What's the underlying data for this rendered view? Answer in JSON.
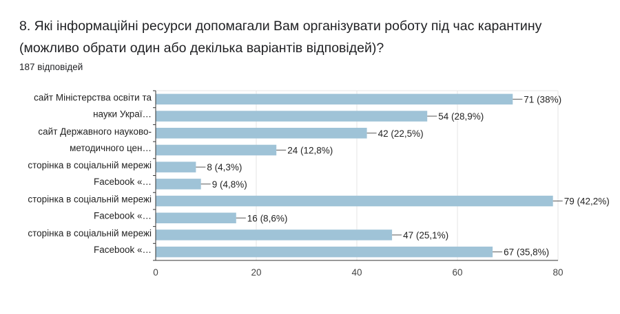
{
  "header": {
    "title": "8. Які інформаційні ресурси допомагали Вам організувати роботу під час карантину (можливо обрати один або декілька варіантів відповідей)?",
    "responses": "187 відповідей"
  },
  "chart_data": {
    "type": "bar",
    "orientation": "horizontal",
    "category_labels": [
      [
        "сайт Міністерства освіти та",
        "науки Украї…"
      ],
      [
        "сайт Державного науково-",
        "методичного цен…"
      ],
      [
        "сторінка в соціальній мережі",
        "Facebook «…"
      ],
      [
        "сторінка в соціальній мережі",
        "Facebook «…"
      ],
      [
        "сторінка в соціальній мережі",
        "Facebook «…"
      ]
    ],
    "values": [
      71,
      54,
      42,
      24,
      8,
      9,
      79,
      16,
      47,
      67
    ],
    "data_labels": [
      "71 (38%)",
      "54 (28,9%)",
      "42 (22,5%)",
      "24 (12,8%)",
      "8 (4,3%)",
      "9 (4,8%)",
      "79 (42,2%)",
      "16 (8,6%)",
      "47 (25,1%)",
      "67 (35,8%)"
    ],
    "x_ticks": [
      0,
      20,
      40,
      60,
      80
    ],
    "xlim": [
      0,
      80
    ],
    "grid": true,
    "colors": {
      "bar": "#9fc3d7",
      "grid": "#e6e6e6",
      "axis": "#333333",
      "leader": "#555555"
    }
  }
}
